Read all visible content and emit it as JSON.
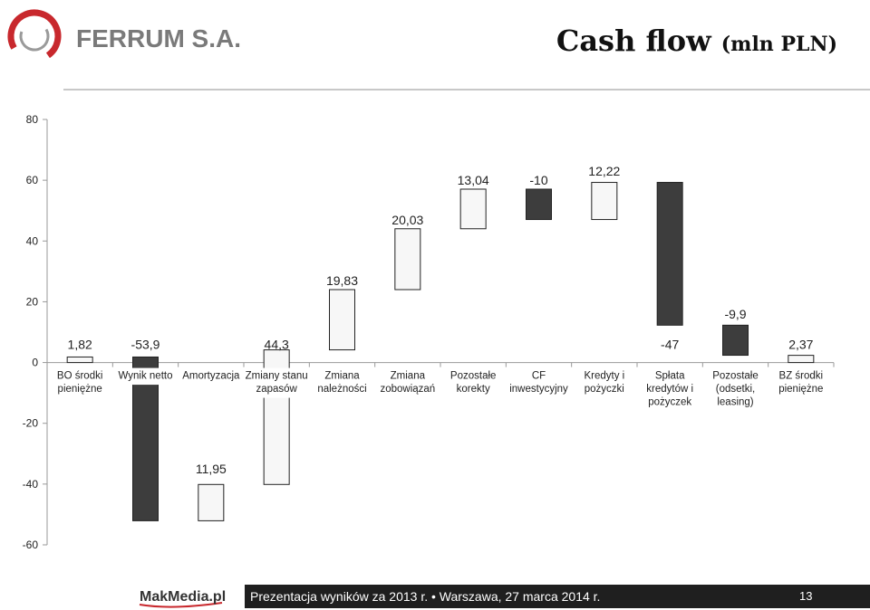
{
  "header": {
    "brand": "FERRUM S.A.",
    "title": "Cash flow",
    "title_unit": "(mln PLN)"
  },
  "footer": {
    "logo_text": "MakMedia.pl",
    "text": "Prezentacja wyników za 2013 r. • Warszawa, 27 marca 2014 r.",
    "page": "13"
  },
  "colors": {
    "increase": "#f7f7f7",
    "decrease": "#3d3d3d",
    "outline": "#222222",
    "brand_red": "#c8282d",
    "brand_gray": "#7a7a7a"
  },
  "chart_data": {
    "type": "bar",
    "subtype": "waterfall",
    "ylim": [
      -60,
      80
    ],
    "yticks": [
      80,
      60,
      40,
      20,
      0,
      -20,
      -40,
      -60
    ],
    "grid": false,
    "legend": "none",
    "bars": [
      {
        "category": "BO środki pieniężne",
        "value": 1.82,
        "label": "1,82",
        "start": 0,
        "end": 1.82,
        "kind": "total"
      },
      {
        "category": "Wynik netto",
        "value": -53.9,
        "label": "-53,9",
        "start": 1.82,
        "end": -52.08,
        "kind": "decrease"
      },
      {
        "category": "Amortyzacja",
        "value": 11.95,
        "label": "11,95",
        "start": -52.08,
        "end": -40.13,
        "kind": "increase"
      },
      {
        "category": "Zmiany stanu zapasów",
        "value": 44.3,
        "label": "44,3",
        "start": -40.13,
        "end": 4.17,
        "kind": "increase"
      },
      {
        "category": "Zmiana należności",
        "value": 19.83,
        "label": "19,83",
        "start": 4.17,
        "end": 24.0,
        "kind": "increase"
      },
      {
        "category": "Zmiana zobowiązań",
        "value": 20.03,
        "label": "20,03",
        "start": 24.0,
        "end": 44.03,
        "kind": "increase"
      },
      {
        "category": "Pozostałe korekty",
        "value": 13.04,
        "label": "13,04",
        "start": 44.03,
        "end": 57.07,
        "kind": "increase"
      },
      {
        "category": "CF inwestycyjny",
        "value": -10,
        "label": "-10",
        "start": 57.07,
        "end": 47.07,
        "kind": "decrease"
      },
      {
        "category": "Kredyty i pożyczki",
        "value": 12.22,
        "label": "12,22",
        "start": 47.07,
        "end": 59.29,
        "kind": "increase"
      },
      {
        "category": "Spłata kredytów i pożyczek",
        "value": -47,
        "label": "-47",
        "start": 59.29,
        "end": 12.29,
        "kind": "decrease"
      },
      {
        "category": "Pozostałe (odsetki, leasing)",
        "value": -9.9,
        "label": "-9,9",
        "start": 12.29,
        "end": 2.39,
        "kind": "decrease"
      },
      {
        "category": "BZ środki pieniężne",
        "value": 2.37,
        "label": "2,37",
        "start": 0,
        "end": 2.37,
        "kind": "total"
      }
    ]
  }
}
